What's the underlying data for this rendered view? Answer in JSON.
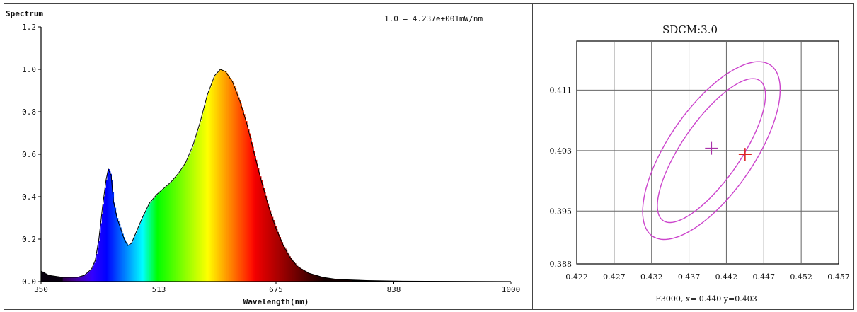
{
  "chart_data": [
    {
      "type": "area",
      "title": "Spectrum",
      "scale_note": "1.0 = 4.237e+001mW/nm",
      "xlabel": "Wavelength(nm)",
      "ylabel": "",
      "xlim": [
        350,
        1000
      ],
      "ylim": [
        0,
        1.2
      ],
      "x_ticks": [
        "350",
        "513",
        "675",
        "838",
        "1000"
      ],
      "y_ticks": [
        "0.0",
        "0.2",
        "0.4",
        "0.6",
        "0.8",
        "1.0",
        "1.2"
      ],
      "x_tick_values": [
        350,
        513,
        675,
        838,
        1000
      ],
      "y_tick_values": [
        0,
        0.2,
        0.4,
        0.6,
        0.8,
        1.0,
        1.2
      ],
      "fill": "spectral-color-gradient",
      "points": [
        [
          350,
          0.05
        ],
        [
          360,
          0.03
        ],
        [
          380,
          0.02
        ],
        [
          400,
          0.02
        ],
        [
          410,
          0.03
        ],
        [
          420,
          0.06
        ],
        [
          425,
          0.1
        ],
        [
          430,
          0.2
        ],
        [
          435,
          0.35
        ],
        [
          440,
          0.48
        ],
        [
          443,
          0.53
        ],
        [
          447,
          0.5
        ],
        [
          450,
          0.38
        ],
        [
          455,
          0.3
        ],
        [
          460,
          0.25
        ],
        [
          465,
          0.2
        ],
        [
          470,
          0.17
        ],
        [
          475,
          0.18
        ],
        [
          480,
          0.22
        ],
        [
          490,
          0.3
        ],
        [
          500,
          0.37
        ],
        [
          510,
          0.41
        ],
        [
          520,
          0.44
        ],
        [
          530,
          0.47
        ],
        [
          540,
          0.51
        ],
        [
          550,
          0.56
        ],
        [
          560,
          0.64
        ],
        [
          570,
          0.75
        ],
        [
          580,
          0.88
        ],
        [
          590,
          0.97
        ],
        [
          598,
          1.0
        ],
        [
          605,
          0.99
        ],
        [
          615,
          0.94
        ],
        [
          625,
          0.85
        ],
        [
          635,
          0.74
        ],
        [
          645,
          0.6
        ],
        [
          655,
          0.47
        ],
        [
          665,
          0.35
        ],
        [
          675,
          0.25
        ],
        [
          685,
          0.17
        ],
        [
          695,
          0.11
        ],
        [
          705,
          0.07
        ],
        [
          720,
          0.04
        ],
        [
          740,
          0.02
        ],
        [
          760,
          0.01
        ],
        [
          800,
          0.005
        ],
        [
          850,
          0.002
        ],
        [
          1000,
          0.0
        ]
      ]
    },
    {
      "type": "scatter",
      "title": "SDCM:3.0",
      "xlabel": "F3000, x= 0.440 y=0.403",
      "ylabel": "",
      "xlim": [
        0.422,
        0.457
      ],
      "ylim": [
        0.388,
        0.4175
      ],
      "x_ticks": [
        "0.422",
        "0.427",
        "0.432",
        "0.437",
        "0.442",
        "0.447",
        "0.452",
        "0.457"
      ],
      "x_tick_values": [
        0.422,
        0.427,
        0.432,
        0.437,
        0.442,
        0.447,
        0.452,
        0.457
      ],
      "y_ticks": [
        "0.411",
        "0.403",
        "0.395",
        "0.388"
      ],
      "y_tick_values": [
        0.411,
        0.403,
        0.395,
        0.388
      ],
      "grid": true,
      "ellipse_color": "#cc44cc",
      "ellipses": [
        {
          "center": [
            0.44,
            0.403
          ],
          "semi_major": 0.0138,
          "semi_minor": 0.0057,
          "angle_deg": 55
        },
        {
          "center": [
            0.44,
            0.403
          ],
          "semi_major": 0.0113,
          "semi_minor": 0.0039,
          "angle_deg": 55
        }
      ],
      "markers": [
        {
          "x": 0.44,
          "y": 0.4033,
          "color": "#aa33aa"
        },
        {
          "x": 0.4445,
          "y": 0.4025,
          "color": "#dd2222"
        }
      ]
    }
  ]
}
